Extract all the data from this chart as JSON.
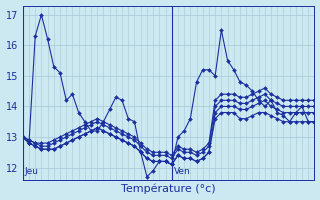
{
  "title": "Température (°c)",
  "bg_color": "#cce8f0",
  "plot_bg_color": "#cce8f0",
  "grid_color": "#a8c8d8",
  "line_color": "#1a2fa0",
  "marker_color": "#1a2fa0",
  "ylim": [
    11.6,
    17.3
  ],
  "yticks": [
    12,
    13,
    14,
    15,
    16,
    17
  ],
  "ylabel_fontsize": 7,
  "xlabel_fontsize": 8,
  "n_hours": 48,
  "jeu_hour": 0,
  "ven_hour": 24,
  "series": [
    [
      13.0,
      12.8,
      16.3,
      17.0,
      16.2,
      15.3,
      15.1,
      14.2,
      14.4,
      13.8,
      13.5,
      13.2,
      13.2,
      13.5,
      13.9,
      14.3,
      14.2,
      13.6,
      13.5,
      12.5,
      11.7,
      11.9,
      12.2,
      12.2,
      12.1,
      13.0,
      13.2,
      13.6,
      14.8,
      15.2,
      15.2,
      15.0,
      16.5,
      15.5,
      15.2,
      14.8,
      14.7,
      14.5,
      14.2,
      14.0,
      14.2,
      13.8,
      13.7,
      13.5,
      13.8,
      14.0,
      13.5,
      13.5
    ],
    [
      13.0,
      12.8,
      12.7,
      12.6,
      12.6,
      12.6,
      12.7,
      12.8,
      12.9,
      13.0,
      13.1,
      13.2,
      13.3,
      13.2,
      13.1,
      13.0,
      12.9,
      12.8,
      12.7,
      12.5,
      12.3,
      12.2,
      12.2,
      12.2,
      12.1,
      12.4,
      12.3,
      12.3,
      12.2,
      12.3,
      12.5,
      13.6,
      13.8,
      13.8,
      13.8,
      13.6,
      13.6,
      13.7,
      13.8,
      13.8,
      13.7,
      13.6,
      13.5,
      13.5,
      13.5,
      13.5,
      13.5,
      13.5
    ],
    [
      13.0,
      12.8,
      12.7,
      12.6,
      12.6,
      12.6,
      12.7,
      12.8,
      12.9,
      13.0,
      13.1,
      13.2,
      13.3,
      13.2,
      13.1,
      13.0,
      12.9,
      12.8,
      12.7,
      12.5,
      12.3,
      12.2,
      12.2,
      12.2,
      12.1,
      12.4,
      12.3,
      12.3,
      12.2,
      12.3,
      12.5,
      13.8,
      14.0,
      14.0,
      14.0,
      13.9,
      13.9,
      14.0,
      14.1,
      14.2,
      14.0,
      13.9,
      13.8,
      13.8,
      13.8,
      13.8,
      13.8,
      13.8
    ],
    [
      13.0,
      12.9,
      12.8,
      12.7,
      12.7,
      12.8,
      12.9,
      13.0,
      13.1,
      13.2,
      13.3,
      13.4,
      13.5,
      13.4,
      13.3,
      13.2,
      13.1,
      13.0,
      12.9,
      12.7,
      12.5,
      12.4,
      12.4,
      12.4,
      12.3,
      12.6,
      12.5,
      12.5,
      12.4,
      12.5,
      12.7,
      14.0,
      14.2,
      14.2,
      14.2,
      14.1,
      14.1,
      14.2,
      14.3,
      14.4,
      14.2,
      14.1,
      14.0,
      14.0,
      14.0,
      14.0,
      14.0,
      14.0
    ],
    [
      13.0,
      12.9,
      12.8,
      12.8,
      12.8,
      12.9,
      13.0,
      13.1,
      13.2,
      13.3,
      13.4,
      13.5,
      13.6,
      13.5,
      13.4,
      13.3,
      13.2,
      13.1,
      13.0,
      12.8,
      12.6,
      12.5,
      12.5,
      12.5,
      12.4,
      12.7,
      12.6,
      12.6,
      12.5,
      12.6,
      12.8,
      14.2,
      14.4,
      14.4,
      14.4,
      14.3,
      14.3,
      14.4,
      14.5,
      14.6,
      14.4,
      14.3,
      14.2,
      14.2,
      14.2,
      14.2,
      14.2,
      14.2
    ]
  ]
}
